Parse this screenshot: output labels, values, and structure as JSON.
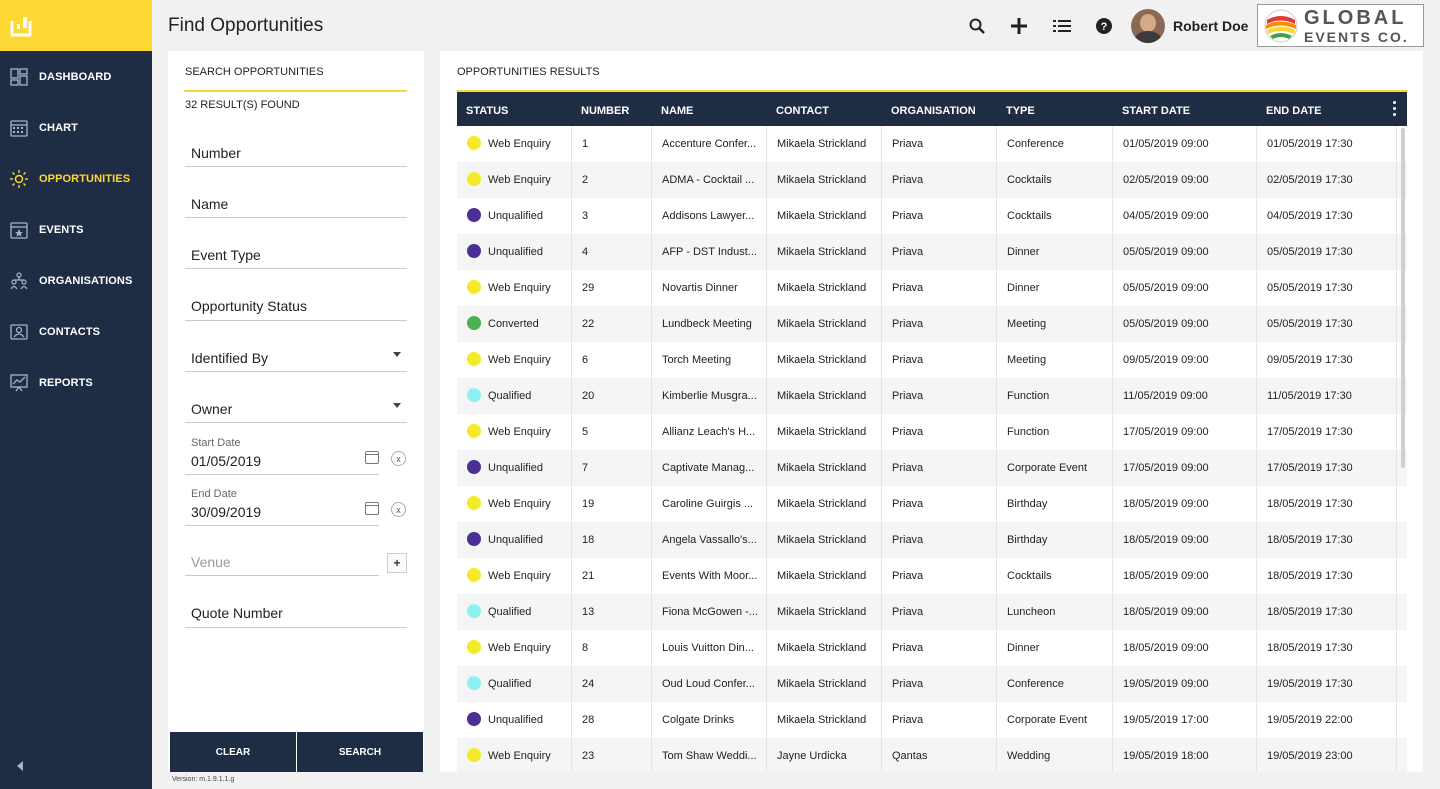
{
  "sidebar": {
    "items": [
      {
        "label": "DASHBOARD",
        "icon": "dashboard-icon"
      },
      {
        "label": "CHART",
        "icon": "chart-icon"
      },
      {
        "label": "OPPORTUNITIES",
        "icon": "opportunities-icon",
        "active": true
      },
      {
        "label": "EVENTS",
        "icon": "events-icon"
      },
      {
        "label": "ORGANISATIONS",
        "icon": "organisations-icon"
      },
      {
        "label": "CONTACTS",
        "icon": "contacts-icon"
      },
      {
        "label": "REPORTS",
        "icon": "reports-icon"
      }
    ]
  },
  "header": {
    "title": "Find Opportunities",
    "user_name": "Robert Doe",
    "brand_line1": "GLOBAL",
    "brand_line2": "EVENTS CO.",
    "icons": [
      "search-icon",
      "add-icon",
      "list-icon",
      "help-icon"
    ]
  },
  "search": {
    "heading": "SEARCH OPPORTUNITIES",
    "result_count": "32 RESULT(S) FOUND",
    "fields": {
      "number": "Number",
      "name": "Name",
      "event_type": "Event Type",
      "opportunity_status": "Opportunity Status",
      "identified_by": "Identified By",
      "owner": "Owner",
      "start_date_label": "Start Date",
      "start_date_value": "01/05/2019",
      "end_date_label": "End Date",
      "end_date_value": "30/09/2019",
      "venue": "Venue",
      "quote_number": "Quote Number"
    },
    "clear_label": "CLEAR",
    "search_label": "SEARCH",
    "clear_x": "x",
    "venue_add": "+",
    "version": "Version: m.1.9.1.1.g"
  },
  "results": {
    "heading": "OPPORTUNITIES RESULTS",
    "columns": [
      "STATUS",
      "NUMBER",
      "NAME",
      "CONTACT",
      "ORGANISATION",
      "TYPE",
      "START DATE",
      "END DATE"
    ],
    "status_colors": {
      "Web Enquiry": "#f5ea2a",
      "Unqualified": "#4b2f96",
      "Converted": "#4caf50",
      "Qualified": "#8ef0f0"
    },
    "rows": [
      {
        "status": "Web Enquiry",
        "number": "1",
        "name": "Accenture Confer...",
        "contact": "Mikaela Strickland",
        "organisation": "Priava",
        "type": "Conference",
        "start": "01/05/2019 09:00",
        "end": "01/05/2019 17:30"
      },
      {
        "status": "Web Enquiry",
        "number": "2",
        "name": "ADMA - Cocktail ...",
        "contact": "Mikaela Strickland",
        "organisation": "Priava",
        "type": "Cocktails",
        "start": "02/05/2019 09:00",
        "end": "02/05/2019 17:30"
      },
      {
        "status": "Unqualified",
        "number": "3",
        "name": "Addisons Lawyer...",
        "contact": "Mikaela Strickland",
        "organisation": "Priava",
        "type": "Cocktails",
        "start": "04/05/2019 09:00",
        "end": "04/05/2019 17:30"
      },
      {
        "status": "Unqualified",
        "number": "4",
        "name": "AFP - DST Indust...",
        "contact": "Mikaela Strickland",
        "organisation": "Priava",
        "type": "Dinner",
        "start": "05/05/2019 09:00",
        "end": "05/05/2019 17:30"
      },
      {
        "status": "Web Enquiry",
        "number": "29",
        "name": "Novartis Dinner",
        "contact": "Mikaela Strickland",
        "organisation": "Priava",
        "type": "Dinner",
        "start": "05/05/2019 09:00",
        "end": "05/05/2019 17:30"
      },
      {
        "status": "Converted",
        "number": "22",
        "name": "Lundbeck Meeting",
        "contact": "Mikaela Strickland",
        "organisation": "Priava",
        "type": "Meeting",
        "start": "05/05/2019 09:00",
        "end": "05/05/2019 17:30"
      },
      {
        "status": "Web Enquiry",
        "number": "6",
        "name": "Torch Meeting",
        "contact": "Mikaela Strickland",
        "organisation": "Priava",
        "type": "Meeting",
        "start": "09/05/2019 09:00",
        "end": "09/05/2019 17:30"
      },
      {
        "status": "Qualified",
        "number": "20",
        "name": "Kimberlie Musgra...",
        "contact": "Mikaela Strickland",
        "organisation": "Priava",
        "type": "Function",
        "start": "11/05/2019 09:00",
        "end": "11/05/2019 17:30"
      },
      {
        "status": "Web Enquiry",
        "number": "5",
        "name": "Allianz Leach's H...",
        "contact": "Mikaela Strickland",
        "organisation": "Priava",
        "type": "Function",
        "start": "17/05/2019 09:00",
        "end": "17/05/2019 17:30"
      },
      {
        "status": "Unqualified",
        "number": "7",
        "name": "Captivate Manag...",
        "contact": "Mikaela Strickland",
        "organisation": "Priava",
        "type": "Corporate Event",
        "start": "17/05/2019 09:00",
        "end": "17/05/2019 17:30"
      },
      {
        "status": "Web Enquiry",
        "number": "19",
        "name": "Caroline Guirgis ...",
        "contact": "Mikaela Strickland",
        "organisation": "Priava",
        "type": "Birthday",
        "start": "18/05/2019 09:00",
        "end": "18/05/2019 17:30"
      },
      {
        "status": "Unqualified",
        "number": "18",
        "name": "Angela Vassallo's...",
        "contact": "Mikaela Strickland",
        "organisation": "Priava",
        "type": "Birthday",
        "start": "18/05/2019 09:00",
        "end": "18/05/2019 17:30"
      },
      {
        "status": "Web Enquiry",
        "number": "21",
        "name": "Events With Moor...",
        "contact": "Mikaela Strickland",
        "organisation": "Priava",
        "type": "Cocktails",
        "start": "18/05/2019 09:00",
        "end": "18/05/2019 17:30"
      },
      {
        "status": "Qualified",
        "number": "13",
        "name": "Fiona McGowen -...",
        "contact": "Mikaela Strickland",
        "organisation": "Priava",
        "type": "Luncheon",
        "start": "18/05/2019 09:00",
        "end": "18/05/2019 17:30"
      },
      {
        "status": "Web Enquiry",
        "number": "8",
        "name": "Louis Vuitton Din...",
        "contact": "Mikaela Strickland",
        "organisation": "Priava",
        "type": "Dinner",
        "start": "18/05/2019 09:00",
        "end": "18/05/2019 17:30"
      },
      {
        "status": "Qualified",
        "number": "24",
        "name": "Oud Loud Confer...",
        "contact": "Mikaela Strickland",
        "organisation": "Priava",
        "type": "Conference",
        "start": "19/05/2019 09:00",
        "end": "19/05/2019 17:30"
      },
      {
        "status": "Unqualified",
        "number": "28",
        "name": "Colgate Drinks",
        "contact": "Mikaela Strickland",
        "organisation": "Priava",
        "type": "Corporate Event",
        "start": "19/05/2019 17:00",
        "end": "19/05/2019 22:00"
      },
      {
        "status": "Web Enquiry",
        "number": "23",
        "name": "Tom Shaw Weddi...",
        "contact": "Jayne Urdicka",
        "organisation": "Qantas",
        "type": "Wedding",
        "start": "19/05/2019 18:00",
        "end": "19/05/2019 23:00"
      }
    ]
  }
}
